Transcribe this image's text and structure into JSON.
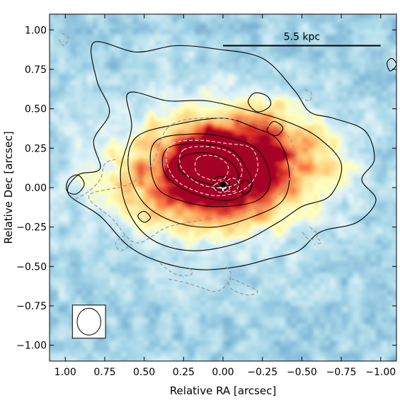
{
  "chart_data": {
    "type": "heatmap",
    "title": "",
    "xlabel": "Relative RA [arcsec]",
    "ylabel": "Relative Dec [arcsec]",
    "xlim": [
      1.1,
      -1.1
    ],
    "ylim": [
      -1.1,
      1.1
    ],
    "x_inverted": true,
    "x_ticks": [
      1.0,
      0.75,
      0.5,
      0.25,
      0.0,
      -0.25,
      -0.5,
      -0.75,
      -1.0
    ],
    "x_tick_labels": [
      "1.00",
      "0.75",
      "0.50",
      "0.25",
      "0.00",
      "−0.25",
      "−0.50",
      "−0.75",
      "−1.00"
    ],
    "y_ticks": [
      1.0,
      0.75,
      0.5,
      0.25,
      0.0,
      -0.25,
      -0.5,
      -0.75,
      -1.0
    ],
    "y_tick_labels": [
      "1.00",
      "0.75",
      "0.50",
      "0.25",
      "0.00",
      "−0.25",
      "−0.50",
      "−0.75",
      "−1.00"
    ],
    "grid": false,
    "colormap": "RdYlBu_r",
    "scale_bar": {
      "label": "5.5 kpc",
      "x_start": 0.0,
      "x_end": -1.0,
      "y": 0.9
    },
    "beam": {
      "x": 0.85,
      "y": -0.85,
      "major": 0.17,
      "minor": 0.15
    },
    "emission_peak": {
      "x": 0.0,
      "y": 0.02,
      "intensity": 1.0
    },
    "emission_components": [
      {
        "x": 0.12,
        "y": 0.12,
        "sx": 0.17,
        "sy": 0.11,
        "intensity": 0.65
      },
      {
        "x": 0.05,
        "y": 0.07,
        "sx": 0.42,
        "sy": 0.27,
        "intensity": 0.55
      },
      {
        "x": 0.05,
        "y": 0.1,
        "sx": 0.72,
        "sy": 0.42,
        "intensity": 0.38
      },
      {
        "x": -0.2,
        "y": 0.35,
        "sx": 0.33,
        "sy": 0.22,
        "intensity": 0.22
      },
      {
        "x": -0.55,
        "y": 0.2,
        "sx": 0.22,
        "sy": 0.2,
        "intensity": 0.15
      }
    ],
    "black_contours": [
      {
        "level": 3,
        "points": [
          [
            0.82,
            0.92
          ],
          [
            0.55,
            0.86
          ],
          [
            0.3,
            0.9
          ],
          [
            0.05,
            0.88
          ],
          [
            -0.25,
            0.82
          ],
          [
            -0.45,
            0.62
          ],
          [
            -0.55,
            0.48
          ],
          [
            -0.7,
            0.44
          ],
          [
            -0.9,
            0.36
          ],
          [
            -0.96,
            0.18
          ],
          [
            -0.88,
            0.05
          ],
          [
            -0.97,
            -0.08
          ],
          [
            -0.85,
            -0.22
          ],
          [
            -0.62,
            -0.28
          ],
          [
            -0.48,
            -0.4
          ],
          [
            -0.3,
            -0.45
          ],
          [
            -0.1,
            -0.5
          ],
          [
            0.15,
            -0.52
          ],
          [
            0.4,
            -0.47
          ],
          [
            0.6,
            -0.37
          ],
          [
            0.78,
            -0.18
          ],
          [
            0.98,
            -0.04
          ],
          [
            0.92,
            0.08
          ],
          [
            0.78,
            0.12
          ],
          [
            0.82,
            0.3
          ],
          [
            0.72,
            0.48
          ],
          [
            0.8,
            0.68
          ]
        ]
      },
      {
        "level": 4,
        "points": [
          [
            0.6,
            0.6
          ],
          [
            0.35,
            0.55
          ],
          [
            0.1,
            0.55
          ],
          [
            -0.2,
            0.48
          ],
          [
            -0.4,
            0.42
          ],
          [
            -0.6,
            0.32
          ],
          [
            -0.75,
            0.15
          ],
          [
            -0.68,
            -0.05
          ],
          [
            -0.5,
            -0.12
          ],
          [
            -0.35,
            -0.22
          ],
          [
            -0.1,
            -0.35
          ],
          [
            0.2,
            -0.4
          ],
          [
            0.45,
            -0.33
          ],
          [
            0.6,
            -0.15
          ],
          [
            0.65,
            0.1
          ],
          [
            0.58,
            0.38
          ]
        ]
      },
      {
        "level": 5,
        "points": [
          [
            0.55,
            0.32
          ],
          [
            0.3,
            0.4
          ],
          [
            0.0,
            0.44
          ],
          [
            -0.2,
            0.38
          ],
          [
            -0.35,
            0.3
          ],
          [
            -0.42,
            0.1
          ],
          [
            -0.38,
            -0.08
          ],
          [
            -0.2,
            -0.18
          ],
          [
            0.05,
            -0.25
          ],
          [
            0.3,
            -0.22
          ],
          [
            0.5,
            -0.1
          ],
          [
            0.6,
            0.12
          ]
        ]
      },
      {
        "level": 6,
        "points": [
          [
            0.42,
            0.3
          ],
          [
            0.2,
            0.34
          ],
          [
            -0.02,
            0.32
          ],
          [
            -0.22,
            0.24
          ],
          [
            -0.3,
            0.05
          ],
          [
            -0.22,
            -0.08
          ],
          [
            0.0,
            -0.12
          ],
          [
            0.2,
            -0.1
          ],
          [
            0.4,
            -0.02
          ],
          [
            0.46,
            0.15
          ]
        ]
      },
      {
        "level": 7,
        "points": [
          [
            0.35,
            0.25
          ],
          [
            0.15,
            0.28
          ],
          [
            -0.05,
            0.24
          ],
          [
            -0.15,
            0.12
          ],
          [
            -0.18,
            0.0
          ],
          [
            -0.05,
            -0.08
          ],
          [
            0.12,
            -0.06
          ],
          [
            0.3,
            0.02
          ],
          [
            0.38,
            0.12
          ]
        ]
      },
      {
        "level": 8,
        "points": [
          [
            0.25,
            0.2
          ],
          [
            0.1,
            0.22
          ],
          [
            -0.05,
            0.16
          ],
          [
            -0.1,
            0.06
          ],
          [
            -0.04,
            0.0
          ],
          [
            0.08,
            0.02
          ],
          [
            0.2,
            0.06
          ],
          [
            0.28,
            0.12
          ]
        ]
      },
      {
        "level": 9,
        "points": [
          [
            0.05,
            0.06
          ],
          [
            0.0,
            0.07
          ],
          [
            -0.04,
            0.04
          ],
          [
            -0.02,
            -0.01
          ],
          [
            0.04,
            -0.01
          ],
          [
            0.06,
            0.02
          ]
        ]
      },
      {
        "level": 3,
        "points": [
          [
            0.98,
            0.05
          ],
          [
            0.92,
            0.08
          ],
          [
            0.88,
            0.02
          ],
          [
            0.93,
            -0.04
          ],
          [
            0.99,
            -0.02
          ]
        ]
      },
      {
        "level": 3,
        "points": [
          [
            -0.2,
            0.6
          ],
          [
            -0.28,
            0.58
          ],
          [
            -0.3,
            0.52
          ],
          [
            -0.22,
            0.48
          ],
          [
            -0.16,
            0.54
          ]
        ]
      },
      {
        "level": 3,
        "points": [
          [
            -0.32,
            0.42
          ],
          [
            -0.38,
            0.38
          ],
          [
            -0.34,
            0.33
          ],
          [
            -0.28,
            0.36
          ]
        ]
      },
      {
        "level": 3,
        "points": [
          [
            -1.07,
            0.82
          ],
          [
            -1.1,
            0.78
          ],
          [
            -1.06,
            0.74
          ],
          [
            -1.04,
            0.79
          ]
        ]
      },
      {
        "level": 3,
        "points": [
          [
            0.5,
            -0.15
          ],
          [
            0.46,
            -0.19
          ],
          [
            0.5,
            -0.22
          ],
          [
            0.54,
            -0.18
          ]
        ]
      },
      {
        "level": 3,
        "points": [
          [
            -0.14,
            0.05
          ],
          [
            -0.18,
            0.0
          ],
          [
            -0.14,
            -0.04
          ],
          [
            -0.1,
            0.0
          ]
        ]
      }
    ],
    "dashed_contours": [
      {
        "level": 1,
        "points": [
          [
            0.35,
            0.38
          ],
          [
            0.15,
            0.44
          ],
          [
            -0.15,
            0.42
          ],
          [
            -0.4,
            0.34
          ],
          [
            -0.45,
            0.15
          ],
          [
            -0.35,
            -0.05
          ],
          [
            -0.15,
            -0.15
          ],
          [
            0.1,
            -0.2
          ],
          [
            0.35,
            -0.25
          ],
          [
            0.55,
            -0.35
          ],
          [
            0.7,
            -0.2
          ],
          [
            0.85,
            -0.05
          ],
          [
            0.6,
            0.02
          ],
          [
            0.45,
            0.15
          ]
        ]
      },
      {
        "level": 1,
        "points": [
          [
            0.68,
            0.18
          ],
          [
            0.75,
            0.15
          ],
          [
            0.78,
            0.05
          ],
          [
            0.86,
            -0.03
          ],
          [
            0.95,
            -0.08
          ]
        ]
      },
      {
        "level": 1,
        "points": [
          [
            -0.02,
            -0.5
          ],
          [
            -0.05,
            -0.55
          ],
          [
            -0.02,
            -0.62
          ],
          [
            0.05,
            -0.66
          ],
          [
            0.15,
            -0.63
          ],
          [
            0.25,
            -0.6
          ],
          [
            0.35,
            -0.58
          ]
        ]
      },
      {
        "level": 1,
        "points": [
          [
            -0.05,
            -0.58
          ],
          [
            -0.15,
            -0.62
          ],
          [
            -0.22,
            -0.66
          ],
          [
            -0.15,
            -0.68
          ],
          [
            -0.05,
            -0.64
          ]
        ]
      },
      {
        "level": 1,
        "points": [
          [
            0.4,
            -0.48
          ],
          [
            0.3,
            -0.55
          ],
          [
            0.2,
            -0.55
          ],
          [
            0.22,
            -0.5
          ]
        ]
      },
      {
        "level": 1,
        "points": [
          [
            0.62,
            -0.3
          ],
          [
            0.68,
            -0.35
          ],
          [
            0.65,
            -0.4
          ],
          [
            0.58,
            -0.36
          ]
        ]
      },
      {
        "level": 1,
        "points": [
          [
            1.02,
            0.98
          ],
          [
            0.98,
            0.95
          ],
          [
            1.01,
            0.9
          ],
          [
            1.04,
            0.94
          ]
        ]
      },
      {
        "level": 1,
        "points": [
          [
            -0.52,
            0.62
          ],
          [
            -0.56,
            0.6
          ],
          [
            -0.55,
            0.55
          ],
          [
            -0.5,
            0.57
          ]
        ]
      },
      {
        "level": 1,
        "points": [
          [
            -0.55,
            -0.25
          ],
          [
            -0.6,
            -0.3
          ],
          [
            -0.55,
            -0.33
          ],
          [
            -0.5,
            -0.28
          ]
        ]
      },
      {
        "level": 1,
        "points": [
          [
            -0.6,
            -0.32
          ],
          [
            -0.62,
            -0.35
          ],
          [
            -0.58,
            -0.36
          ]
        ]
      },
      {
        "level": 2,
        "points": [
          [
            0.32,
            0.28
          ],
          [
            0.15,
            0.3
          ],
          [
            -0.02,
            0.28
          ],
          [
            -0.18,
            0.25
          ],
          [
            -0.22,
            0.12
          ],
          [
            -0.15,
            0.0
          ],
          [
            0.0,
            -0.05
          ],
          [
            0.15,
            -0.03
          ],
          [
            0.3,
            0.05
          ],
          [
            0.36,
            0.18
          ]
        ]
      },
      {
        "level": 3,
        "points": [
          [
            0.25,
            0.24
          ],
          [
            0.1,
            0.26
          ],
          [
            -0.05,
            0.22
          ],
          [
            -0.12,
            0.12
          ],
          [
            -0.08,
            0.02
          ],
          [
            0.05,
            0.0
          ],
          [
            0.18,
            0.04
          ],
          [
            0.27,
            0.14
          ]
        ]
      },
      {
        "level": 4,
        "points": [
          [
            0.16,
            0.19
          ],
          [
            0.05,
            0.2
          ],
          [
            -0.03,
            0.14
          ],
          [
            -0.01,
            0.06
          ],
          [
            0.08,
            0.05
          ],
          [
            0.17,
            0.1
          ]
        ]
      },
      {
        "level": 4,
        "points": [
          [
            -0.06,
            0.06
          ],
          [
            -0.1,
            0.03
          ],
          [
            -0.08,
            -0.02
          ],
          [
            -0.03,
            -0.02
          ],
          [
            0.0,
            0.02
          ]
        ]
      },
      {
        "level": 5,
        "points": [
          [
            0.05,
            0.02
          ],
          [
            0.0,
            0.04
          ],
          [
            -0.04,
            0.01
          ],
          [
            -0.03,
            -0.02
          ],
          [
            0.02,
            -0.03
          ],
          [
            0.06,
            0.0
          ]
        ]
      }
    ],
    "markers": [
      {
        "kind": "plus",
        "x": 0.0,
        "y": 0.0
      },
      {
        "kind": "dot",
        "x": 0.0,
        "y": 0.02
      }
    ]
  }
}
